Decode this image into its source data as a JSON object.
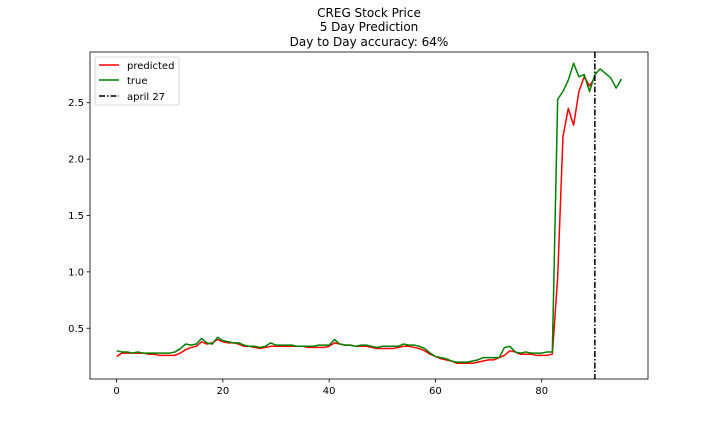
{
  "chart_data": {
    "type": "line",
    "title_lines": [
      "CREG Stock Price",
      "5 Day Prediction",
      "Day to Day accuracy: 64%"
    ],
    "xlabel": "",
    "ylabel": "",
    "xlim": [
      -5,
      100
    ],
    "ylim": [
      0.05,
      2.95
    ],
    "xticks": [
      0,
      20,
      40,
      60,
      80
    ],
    "yticks": [
      0.5,
      1.0,
      1.5,
      2.0,
      2.5
    ],
    "ytick_labels": [
      "0.5",
      "1.0",
      "1.5",
      "2.0",
      "2.5"
    ],
    "grid": false,
    "legend_position": "top-left",
    "series": [
      {
        "name": "predicted",
        "color": "#ff0000",
        "x": [
          0,
          1,
          2,
          3,
          4,
          5,
          6,
          7,
          8,
          9,
          10,
          11,
          12,
          13,
          14,
          15,
          16,
          17,
          18,
          19,
          20,
          21,
          22,
          23,
          24,
          25,
          26,
          27,
          28,
          29,
          30,
          31,
          32,
          33,
          34,
          35,
          36,
          37,
          38,
          39,
          40,
          41,
          42,
          43,
          44,
          45,
          46,
          47,
          48,
          49,
          50,
          51,
          52,
          53,
          54,
          55,
          56,
          57,
          58,
          59,
          60,
          61,
          62,
          63,
          64,
          65,
          66,
          67,
          68,
          69,
          70,
          71,
          72,
          73,
          74,
          75,
          76,
          77,
          78,
          79,
          80,
          81,
          82,
          83,
          84,
          85,
          86,
          87,
          88,
          89,
          90
        ],
        "values": [
          0.25,
          0.28,
          0.28,
          0.28,
          0.28,
          0.28,
          0.27,
          0.27,
          0.26,
          0.26,
          0.26,
          0.26,
          0.28,
          0.31,
          0.33,
          0.34,
          0.38,
          0.36,
          0.37,
          0.4,
          0.38,
          0.37,
          0.37,
          0.36,
          0.34,
          0.34,
          0.33,
          0.32,
          0.33,
          0.34,
          0.34,
          0.34,
          0.34,
          0.34,
          0.34,
          0.34,
          0.33,
          0.33,
          0.33,
          0.33,
          0.34,
          0.37,
          0.36,
          0.35,
          0.35,
          0.34,
          0.34,
          0.34,
          0.33,
          0.32,
          0.32,
          0.32,
          0.32,
          0.33,
          0.34,
          0.34,
          0.33,
          0.32,
          0.3,
          0.27,
          0.25,
          0.23,
          0.22,
          0.21,
          0.19,
          0.19,
          0.19,
          0.19,
          0.2,
          0.21,
          0.22,
          0.22,
          0.24,
          0.26,
          0.3,
          0.29,
          0.27,
          0.27,
          0.27,
          0.26,
          0.26,
          0.26,
          0.27,
          0.95,
          2.2,
          2.45,
          2.3,
          2.6,
          2.73,
          2.65,
          2.72
        ]
      },
      {
        "name": "true",
        "color": "#008000",
        "x": [
          0,
          1,
          2,
          3,
          4,
          5,
          6,
          7,
          8,
          9,
          10,
          11,
          12,
          13,
          14,
          15,
          16,
          17,
          18,
          19,
          20,
          21,
          22,
          23,
          24,
          25,
          26,
          27,
          28,
          29,
          30,
          31,
          32,
          33,
          34,
          35,
          36,
          37,
          38,
          39,
          40,
          41,
          42,
          43,
          44,
          45,
          46,
          47,
          48,
          49,
          50,
          51,
          52,
          53,
          54,
          55,
          56,
          57,
          58,
          59,
          60,
          61,
          62,
          63,
          64,
          65,
          66,
          67,
          68,
          69,
          70,
          71,
          72,
          73,
          74,
          75,
          76,
          77,
          78,
          79,
          80,
          81,
          82,
          83,
          84,
          85,
          86,
          87,
          88,
          89,
          90,
          91,
          92,
          93,
          94,
          95
        ],
        "values": [
          0.3,
          0.29,
          0.29,
          0.28,
          0.29,
          0.28,
          0.28,
          0.28,
          0.28,
          0.28,
          0.28,
          0.29,
          0.32,
          0.36,
          0.35,
          0.36,
          0.41,
          0.37,
          0.36,
          0.42,
          0.39,
          0.38,
          0.37,
          0.37,
          0.35,
          0.34,
          0.34,
          0.33,
          0.34,
          0.37,
          0.35,
          0.35,
          0.35,
          0.35,
          0.34,
          0.34,
          0.34,
          0.34,
          0.35,
          0.35,
          0.35,
          0.4,
          0.36,
          0.35,
          0.35,
          0.34,
          0.35,
          0.35,
          0.34,
          0.33,
          0.34,
          0.34,
          0.34,
          0.34,
          0.36,
          0.35,
          0.35,
          0.34,
          0.32,
          0.28,
          0.25,
          0.24,
          0.23,
          0.21,
          0.2,
          0.2,
          0.2,
          0.21,
          0.22,
          0.24,
          0.24,
          0.24,
          0.24,
          0.33,
          0.34,
          0.29,
          0.28,
          0.29,
          0.28,
          0.28,
          0.28,
          0.29,
          0.29,
          2.53,
          2.6,
          2.7,
          2.85,
          2.73,
          2.75,
          2.6,
          2.75,
          2.8,
          2.76,
          2.72,
          2.63,
          2.71
        ]
      },
      {
        "name": "april 27",
        "color": "#000000",
        "style": "dash-dot",
        "vline_x": 90
      }
    ]
  }
}
